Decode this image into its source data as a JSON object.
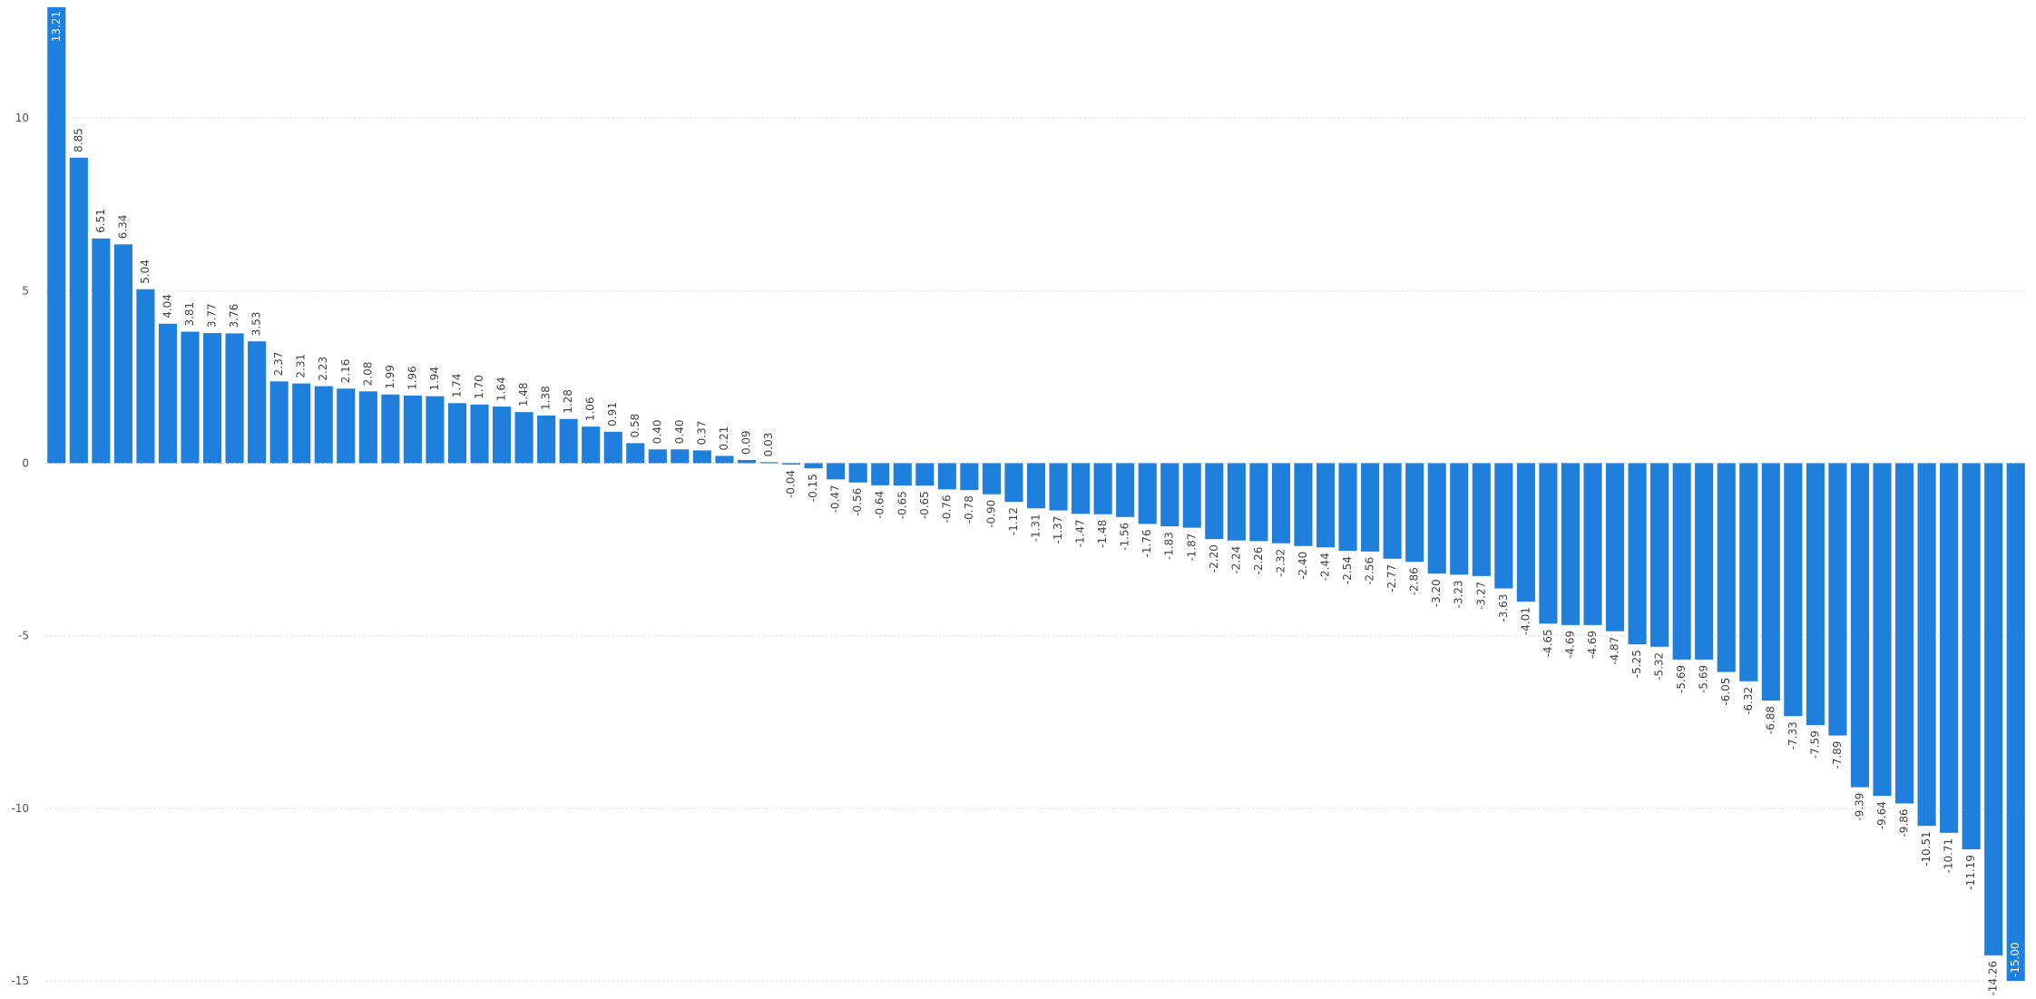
{
  "chart_data": {
    "type": "bar",
    "title": "",
    "xlabel": "",
    "ylabel": "",
    "ylim": [
      -15,
      13.21
    ],
    "yticks": [
      10,
      5,
      0,
      -5,
      -10,
      -15
    ],
    "grid": true,
    "bar_color": "#1f7fdc",
    "values": [
      13.21,
      8.85,
      6.51,
      6.34,
      5.04,
      4.04,
      3.81,
      3.77,
      3.76,
      3.53,
      2.37,
      2.31,
      2.23,
      2.16,
      2.08,
      1.99,
      1.96,
      1.94,
      1.74,
      1.7,
      1.64,
      1.48,
      1.38,
      1.28,
      1.06,
      0.91,
      0.58,
      0.4,
      0.4,
      0.37,
      0.21,
      0.09,
      0.03,
      -0.04,
      -0.15,
      -0.47,
      -0.56,
      -0.64,
      -0.65,
      -0.65,
      -0.76,
      -0.78,
      -0.9,
      -1.12,
      -1.31,
      -1.37,
      -1.47,
      -1.48,
      -1.56,
      -1.76,
      -1.83,
      -1.87,
      -2.2,
      -2.24,
      -2.26,
      -2.32,
      -2.4,
      -2.44,
      -2.54,
      -2.56,
      -2.77,
      -2.86,
      -3.2,
      -3.23,
      -3.27,
      -3.63,
      -4.01,
      -4.65,
      -4.69,
      -4.69,
      -4.87,
      -5.25,
      -5.32,
      -5.69,
      -5.69,
      -6.05,
      -6.32,
      -6.88,
      -7.33,
      -7.59,
      -7.89,
      -9.39,
      -9.64,
      -9.86,
      -10.51,
      -10.71,
      -11.19,
      -14.26,
      -15.0
    ],
    "labels": [
      "13.21",
      "8.85",
      "6.51",
      "6.34",
      "5.04",
      "4.04",
      "3.81",
      "3.77",
      "3.76",
      "3.53",
      "2.37",
      "2.31",
      "2.23",
      "2.16",
      "2.08",
      "1.99",
      "1.96",
      "1.94",
      "1.74",
      "1.70",
      "1.64",
      "1.48",
      "1.38",
      "1.28",
      "1.06",
      "0.91",
      "0.58",
      "0.40",
      "0.40",
      "0.37",
      "0.21",
      "0.09",
      "0.03",
      "-0.04",
      "-0.15",
      "-0.47",
      "-0.56",
      "-0.64",
      "-0.65",
      "-0.65",
      "-0.76",
      "-0.78",
      "-0.90",
      "-1.12",
      "-1.31",
      "-1.37",
      "-1.47",
      "-1.48",
      "-1.56",
      "-1.76",
      "-1.83",
      "-1.87",
      "-2.20",
      "-2.24",
      "-2.26",
      "-2.32",
      "-2.40",
      "-2.44",
      "-2.54",
      "-2.56",
      "-2.77",
      "-2.86",
      "-3.20",
      "-3.23",
      "-3.27",
      "-3.63",
      "-4.01",
      "-4.65",
      "-4.69",
      "-4.69",
      "-4.87",
      "-5.25",
      "-5.32",
      "-5.69",
      "-5.69",
      "-6.05",
      "-6.32",
      "-6.88",
      "-7.33",
      "-7.59",
      "-7.89",
      "-9.39",
      "-9.64",
      "-9.86",
      "-10.51",
      "-10.71",
      "-11.19",
      "-14.26",
      "-15.00"
    ]
  }
}
